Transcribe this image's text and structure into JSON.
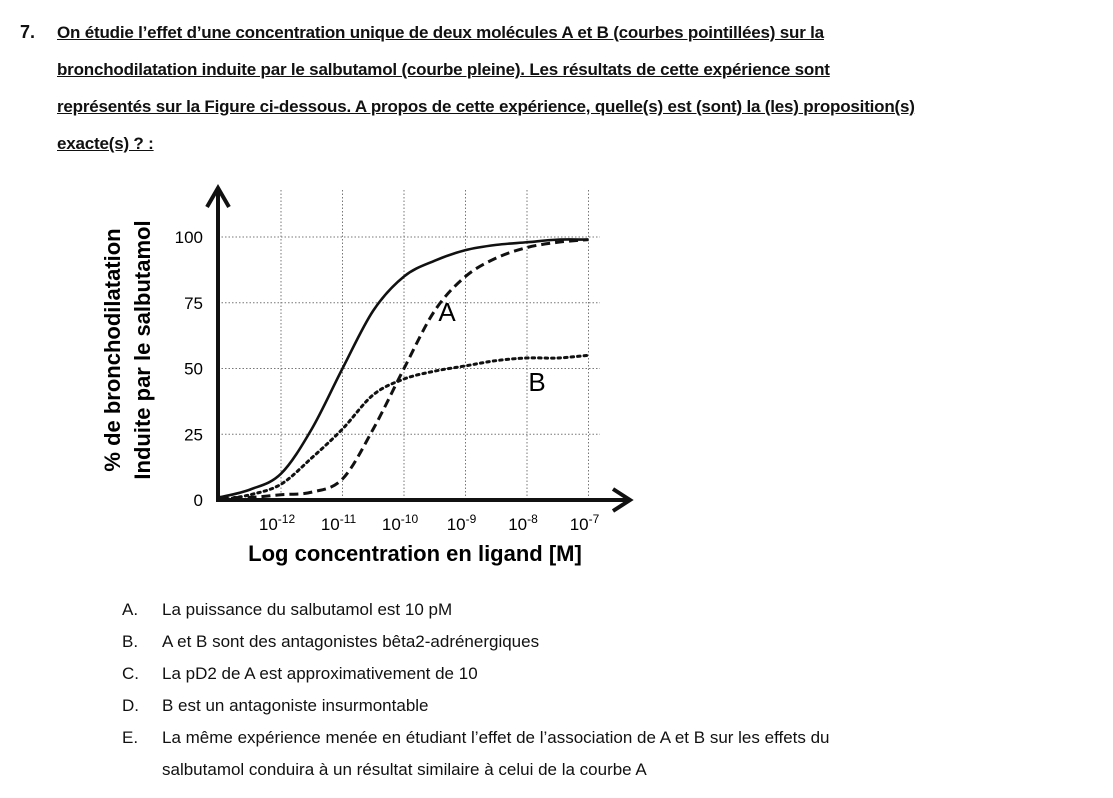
{
  "question": {
    "number": "7.",
    "lines": [
      "On étudie l’effet d’une concentration unique de deux molécules A et B (courbes pointillées) sur la",
      "bronchodilatation induite par le salbutamol (courbe pleine). Les résultats de cette expérience sont",
      "représentés sur la Figure ci-dessous. A propos de cette expérience, quelle(s) est (sont) la (les) proposition(s)",
      "exacte(s) ? :"
    ]
  },
  "options": [
    {
      "letter": "A.",
      "text": "La puissance du salbutamol est 10 pM"
    },
    {
      "letter": "B.",
      "text": "A et B sont des antagonistes bêta2-adrénergiques"
    },
    {
      "letter": "C.",
      "text": "La pD2 de A est approximativement de 10"
    },
    {
      "letter": "D.",
      "text": "B est un antagoniste insurmontable"
    },
    {
      "letter": "E.",
      "text": "La même expérience menée en étudiant l’effet de l’association de A et B sur les effets du",
      "text2": "salbutamol conduira à un résultat similaire à celui de la courbe A"
    }
  ],
  "chart_data": {
    "type": "line",
    "xlabel": "Log concentration en ligand [M]",
    "ylabel_lines": [
      "% de bronchodilatation",
      "Induite par le salbutamol"
    ],
    "x_scale": "log10",
    "xlim": [
      -13,
      -6.8
    ],
    "ylim": [
      0,
      100
    ],
    "grid": true,
    "x_ticks": [
      {
        "value": -12,
        "base": "10",
        "exp": "-12"
      },
      {
        "value": -11,
        "base": "10",
        "exp": "-11"
      },
      {
        "value": -10,
        "base": "10",
        "exp": "-10"
      },
      {
        "value": -9,
        "base": "10",
        "exp": "-9"
      },
      {
        "value": -8,
        "base": "10",
        "exp": "-8"
      },
      {
        "value": -7,
        "base": "10",
        "exp": "-7"
      }
    ],
    "y_ticks": [
      "0",
      "25",
      "50",
      "75",
      "100"
    ],
    "x": [
      -13,
      -12.5,
      -12,
      -11.5,
      -11,
      -10.5,
      -10,
      -9.5,
      -9,
      -8.5,
      -8,
      -7.5,
      -7
    ],
    "series": [
      {
        "style": "solid",
        "values": [
          1,
          4,
          10,
          27,
          50,
          72,
          85,
          91,
          95,
          97,
          98,
          99,
          99
        ]
      },
      {
        "name": "A",
        "style": "dashed",
        "values": [
          1,
          1,
          2,
          3,
          8,
          27,
          50,
          72,
          85,
          92,
          96,
          98,
          99
        ]
      },
      {
        "name": "B",
        "style": "dotted",
        "values": [
          0,
          2,
          6,
          16,
          27,
          40,
          46,
          49,
          51,
          53,
          54,
          54,
          55
        ]
      }
    ],
    "color": "#111111"
  }
}
